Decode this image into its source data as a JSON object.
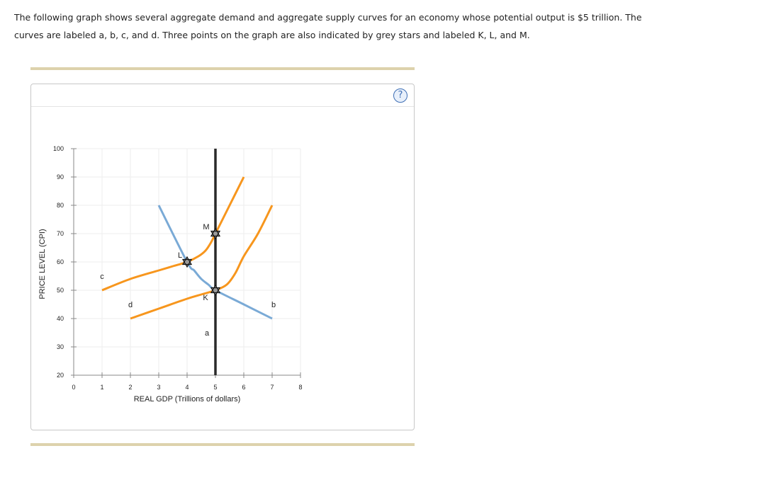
{
  "question": {
    "line1": "The following graph shows several aggregate demand and aggregate supply curves for an economy whose potential output is $5 trillion. The",
    "line2": "curves are labeled a, b, c, and d. Three points on the graph are also indicated by grey stars and labeled K, L, and M."
  },
  "help": {
    "label": "?"
  },
  "colors": {
    "supply": "#f7961d",
    "demand": "#7aaad6",
    "vertical": "#2a2a2a",
    "star_fill": "#9a9a9a",
    "grid": "#eeeeee",
    "axis": "#888888"
  },
  "chart_data": {
    "type": "line",
    "xlabel": "REAL GDP (Trillions of dollars)",
    "ylabel": "PRICE LEVEL (CPI)",
    "xlim": [
      0,
      8
    ],
    "ylim": [
      20,
      100
    ],
    "xticks": [
      0,
      1,
      2,
      3,
      4,
      5,
      6,
      7,
      8
    ],
    "yticks": [
      20,
      30,
      40,
      50,
      60,
      70,
      80,
      90,
      100
    ],
    "grid": true,
    "series": [
      {
        "name": "a",
        "kind": "vertical",
        "points": [
          [
            5,
            20
          ],
          [
            5,
            100
          ]
        ]
      },
      {
        "name": "b",
        "kind": "demand",
        "points": [
          [
            3,
            80
          ],
          [
            4,
            60
          ],
          [
            4.25,
            57
          ],
          [
            4.5,
            54
          ],
          [
            4.75,
            52
          ],
          [
            5,
            50
          ],
          [
            6,
            45
          ],
          [
            7,
            40
          ]
        ]
      },
      {
        "name": "c",
        "kind": "supply",
        "points": [
          [
            1,
            50
          ],
          [
            2,
            54
          ],
          [
            3,
            57
          ],
          [
            3.5,
            58.5
          ],
          [
            4,
            60
          ],
          [
            4.4,
            62
          ],
          [
            4.65,
            64
          ],
          [
            4.85,
            67
          ],
          [
            5,
            70
          ],
          [
            5.5,
            80
          ],
          [
            6,
            90
          ]
        ]
      },
      {
        "name": "d",
        "kind": "supply",
        "points": [
          [
            2,
            40
          ],
          [
            3,
            43.5
          ],
          [
            4,
            47
          ],
          [
            4.5,
            48.5
          ],
          [
            5,
            50
          ],
          [
            5.4,
            52
          ],
          [
            5.7,
            56
          ],
          [
            6,
            62
          ],
          [
            6.5,
            70
          ],
          [
            7,
            80
          ]
        ]
      }
    ],
    "curve_labels": [
      {
        "text": "a",
        "x": 4.7,
        "y": 34
      },
      {
        "text": "b",
        "x": 7.05,
        "y": 44
      },
      {
        "text": "c",
        "x": 1.0,
        "y": 54
      },
      {
        "text": "d",
        "x": 2.0,
        "y": 44
      }
    ],
    "points": [
      {
        "label": "K",
        "x": 5,
        "y": 50
      },
      {
        "label": "L",
        "x": 4,
        "y": 60
      },
      {
        "label": "M",
        "x": 5,
        "y": 70
      }
    ]
  }
}
